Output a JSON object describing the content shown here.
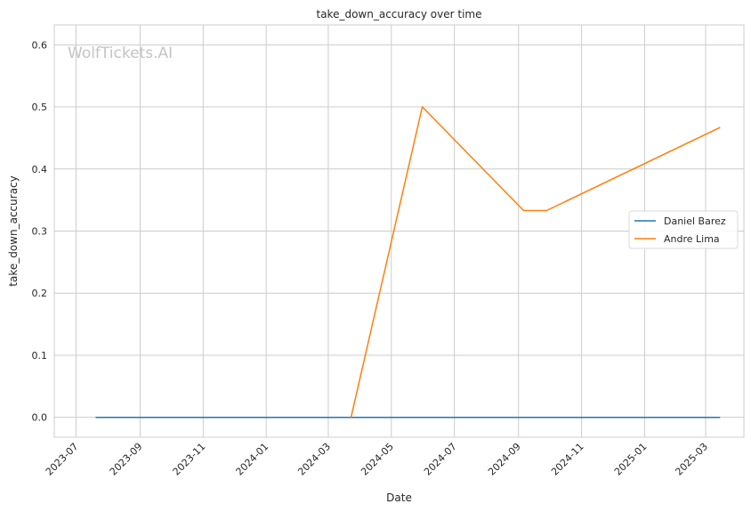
{
  "chart_data": {
    "type": "line",
    "title": "take_down_accuracy over time",
    "xlabel": "Date",
    "ylabel": "take_down_accuracy",
    "watermark": "WolfTickets.AI",
    "x_ticks": [
      "2023-07",
      "2023-09",
      "2023-11",
      "2024-01",
      "2024-03",
      "2024-05",
      "2024-07",
      "2024-09",
      "2024-11",
      "2025-01",
      "2025-03"
    ],
    "xlim": [
      "2023-06-10",
      "2025-04-07"
    ],
    "y_ticks": [
      "0.0",
      "0.1",
      "0.2",
      "0.3",
      "0.4",
      "0.5",
      "0.6"
    ],
    "ylim": [
      -0.032,
      0.632
    ],
    "grid": true,
    "legend_position": "center-right",
    "series": [
      {
        "name": "Daniel Barez",
        "color": "#1f77b4",
        "points": [
          {
            "x": "2023-07-20",
            "y": 0.0
          },
          {
            "x": "2025-03-15",
            "y": 0.0
          }
        ]
      },
      {
        "name": "Andre Lima",
        "color": "#ff7f0e",
        "points": [
          {
            "x": "2024-03-23",
            "y": 0.0
          },
          {
            "x": "2024-05-31",
            "y": 0.5
          },
          {
            "x": "2024-09-06",
            "y": 0.333
          },
          {
            "x": "2024-09-28",
            "y": 0.333
          },
          {
            "x": "2025-03-15",
            "y": 0.467
          }
        ]
      }
    ]
  }
}
